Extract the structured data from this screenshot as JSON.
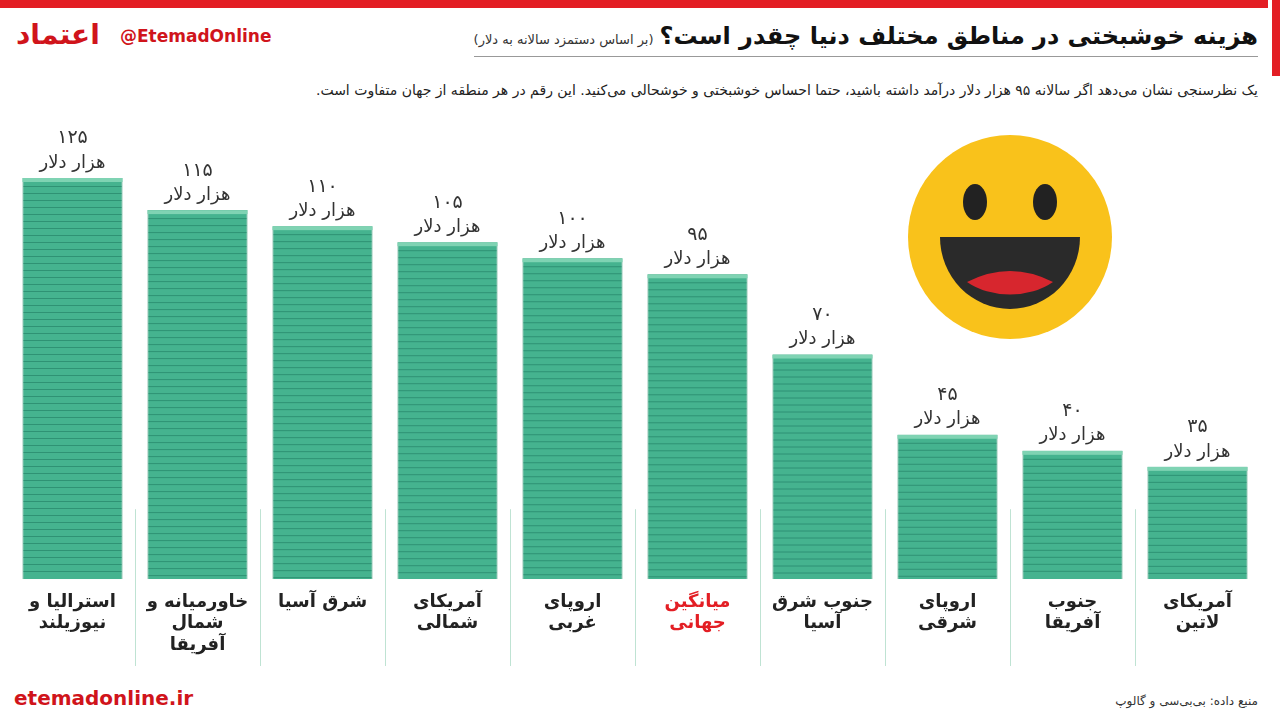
{
  "chart_data": {
    "type": "bar",
    "title": "هزینه خوشبختی در مناطق مختلف دنیا چقدر است؟",
    "title_note": "(بر اساس دستمزد سالانه به دلار)",
    "subtitle": "یک نظرسنجی نشان می‌دهد اگر سالانه ۹۵ هزار دلار درآمد داشته باشید، حتما احساس خوشبختی و خوشحالی می‌کنید. این رقم در هر منطقه از جهان متفاوت است.",
    "source": "منبع داده: بی‌بی‌سی و گالوپ",
    "website": "etemadonline.ir",
    "logo": "اعتماد",
    "handle": "@EtemadOnline",
    "categories": [
      "استرالیا و نیوزیلند",
      "خاورمیانه و شمال آفریقا",
      "شرق آسیا",
      "آمریکای شمالی",
      "اروپای غربی",
      "میانگین جهانی",
      "جنوب شرق آسیا",
      "اروپای شرقی",
      "جنوب آفریقا",
      "آمریکای لاتین"
    ],
    "values": [
      125,
      115,
      110,
      105,
      100,
      95,
      70,
      45,
      40,
      35
    ],
    "value_labels": [
      "۱۲۵ هزار دلار",
      "۱۱۵ هزار دلار",
      "۱۱۰ هزار دلار",
      "۱۰۵ هزار دلار",
      "۱۰۰ هزار دلار",
      "۹۵ هزار دلار",
      "۷۰ هزار دلار",
      "۴۵ هزار دلار",
      "۴۰ هزار دلار",
      "۳۵ هزار دلار"
    ],
    "color": "#45b38f",
    "ylim": [
      0,
      125
    ],
    "tick_labels": "x",
    "grid": false,
    "data_labels": true
  }
}
